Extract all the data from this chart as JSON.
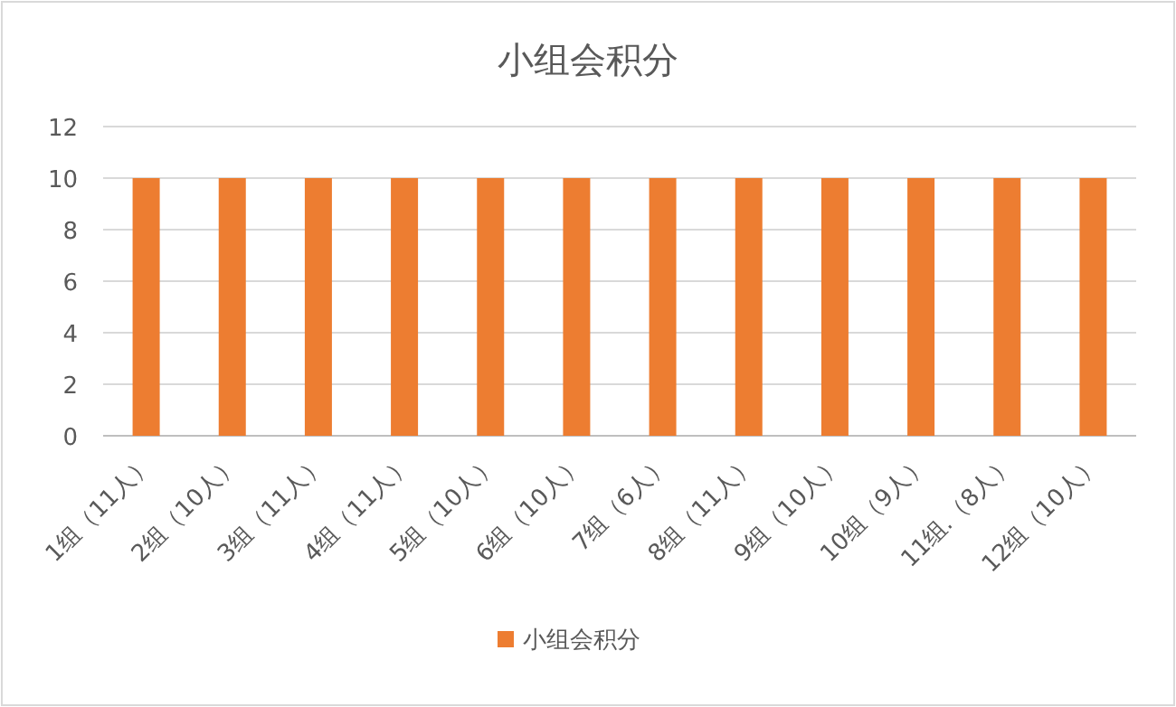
{
  "chart_data": {
    "type": "bar",
    "title": "小组会积分",
    "categories": [
      "1组（11人）",
      "2组（10人）",
      "3组（11人）",
      "4组（11人）",
      "5组（10人）",
      "6组（10人）",
      "7组（6人）",
      "8组（11人）",
      "9组（10人）",
      "10组（9人）",
      "11组.（8人）",
      "12组（10人）"
    ],
    "series": [
      {
        "name": "小组会积分",
        "color": "#ed7d31",
        "values": [
          10,
          10,
          10,
          10,
          10,
          10,
          10,
          10,
          10,
          10,
          10,
          10
        ]
      }
    ],
    "ylim": [
      0,
      12
    ],
    "yticks": [
      0,
      2,
      4,
      6,
      8,
      10,
      12
    ],
    "grid": "y",
    "legend": "bottom"
  }
}
